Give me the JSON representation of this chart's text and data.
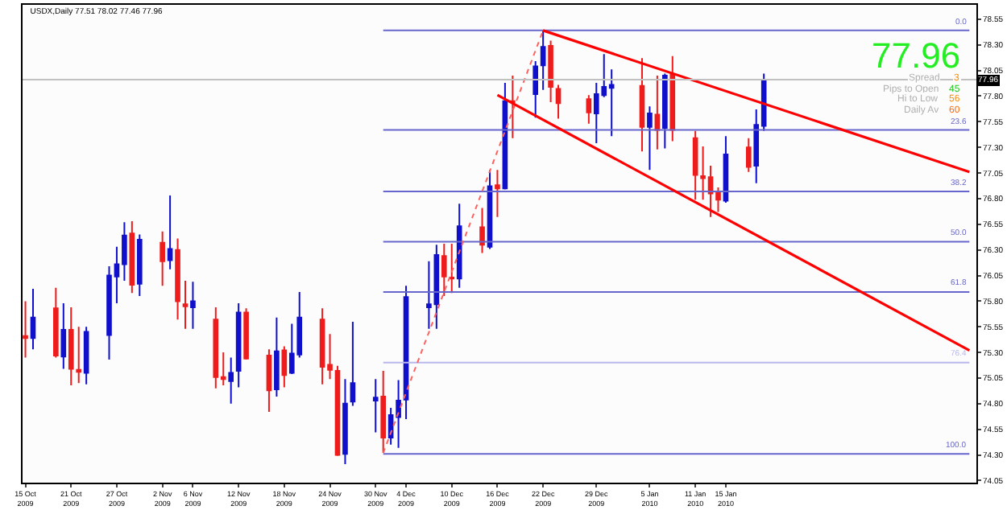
{
  "chart_data": {
    "type": "candlestick",
    "title": "USDX,Daily 77.51 78.02 77.46 77.96",
    "x": [
      "2009-10-15",
      "2009-10-16",
      "2009-10-19",
      "2009-10-20",
      "2009-10-21",
      "2009-10-22",
      "2009-10-23",
      "2009-10-26",
      "2009-10-27",
      "2009-10-28",
      "2009-10-29",
      "2009-10-30",
      "2009-11-02",
      "2009-11-03",
      "2009-11-04",
      "2009-11-05",
      "2009-11-06",
      "2009-11-09",
      "2009-11-10",
      "2009-11-11",
      "2009-11-12",
      "2009-11-13",
      "2009-11-16",
      "2009-11-17",
      "2009-11-18",
      "2009-11-19",
      "2009-11-20",
      "2009-11-23",
      "2009-11-24",
      "2009-11-25",
      "2009-11-26",
      "2009-11-27",
      "2009-11-30",
      "2009-12-01",
      "2009-12-02",
      "2009-12-03",
      "2009-12-04",
      "2009-12-07",
      "2009-12-08",
      "2009-12-09",
      "2009-12-10",
      "2009-12-11",
      "2009-12-14",
      "2009-12-15",
      "2009-12-16",
      "2009-12-17",
      "2009-12-18",
      "2009-12-21",
      "2009-12-22",
      "2009-12-23",
      "2009-12-24",
      "2009-12-28",
      "2009-12-29",
      "2009-12-30",
      "2009-12-31",
      "2010-01-04",
      "2010-01-05",
      "2010-01-06",
      "2010-01-07",
      "2010-01-08",
      "2010-01-11",
      "2010-01-12",
      "2010-01-13",
      "2010-01-14",
      "2010-01-15",
      "2010-01-18",
      "2010-01-19",
      "2010-01-20"
    ],
    "ohlc": [
      [
        75.46,
        75.8,
        75.25,
        75.44
      ],
      [
        75.44,
        75.92,
        75.33,
        75.64
      ],
      [
        75.73,
        75.93,
        75.25,
        75.27
      ],
      [
        75.26,
        75.78,
        75.14,
        75.52
      ],
      [
        75.52,
        75.74,
        74.98,
        75.14
      ],
      [
        75.13,
        75.55,
        75.0,
        75.11
      ],
      [
        75.1,
        75.55,
        74.99,
        75.5
      ],
      [
        75.47,
        76.14,
        75.23,
        76.05
      ],
      [
        76.04,
        76.33,
        75.78,
        76.16
      ],
      [
        76.16,
        76.57,
        76.0,
        76.44
      ],
      [
        76.46,
        76.58,
        75.88,
        75.96
      ],
      [
        75.97,
        76.45,
        75.85,
        76.4
      ],
      [
        76.37,
        76.48,
        75.95,
        76.19
      ],
      [
        76.2,
        76.83,
        76.11,
        76.31
      ],
      [
        76.3,
        76.41,
        75.62,
        75.8
      ],
      [
        75.77,
        76.0,
        75.53,
        75.75
      ],
      [
        75.74,
        75.99,
        75.53,
        75.8
      ],
      [
        75.62,
        75.74,
        74.95,
        75.06
      ],
      [
        75.06,
        75.3,
        74.98,
        75.04
      ],
      [
        75.02,
        75.25,
        74.8,
        75.1
      ],
      [
        75.12,
        75.78,
        74.96,
        75.69
      ],
      [
        75.69,
        75.73,
        75.23,
        75.24
      ],
      [
        75.27,
        75.33,
        74.72,
        74.93
      ],
      [
        74.94,
        75.64,
        74.87,
        75.31
      ],
      [
        75.32,
        75.36,
        74.96,
        75.08
      ],
      [
        75.1,
        75.58,
        75.09,
        75.29
      ],
      [
        75.28,
        75.89,
        75.25,
        75.64
      ],
      [
        75.62,
        75.73,
        74.99,
        75.16
      ],
      [
        75.18,
        75.48,
        75.04,
        75.13
      ],
      [
        75.12,
        75.17,
        74.29,
        74.3
      ],
      [
        74.31,
        75.04,
        74.21,
        74.8
      ],
      [
        74.82,
        75.6,
        74.78,
        75.0
      ],
      [
        74.83,
        75.04,
        74.52,
        74.86
      ],
      [
        74.87,
        75.12,
        74.32,
        74.47
      ],
      [
        74.47,
        74.76,
        74.4,
        74.69
      ],
      [
        74.67,
        75.03,
        74.37,
        74.83
      ],
      [
        74.84,
        75.95,
        74.65,
        75.84
      ],
      [
        75.74,
        76.19,
        75.53,
        75.77
      ],
      [
        75.77,
        76.35,
        75.53,
        76.25
      ],
      [
        76.24,
        76.36,
        75.85,
        76.04
      ],
      [
        76.03,
        76.36,
        75.88,
        76.02
      ],
      [
        76.02,
        76.75,
        75.93,
        76.53
      ],
      [
        76.52,
        76.71,
        76.27,
        76.35
      ],
      [
        76.33,
        77.08,
        76.31,
        76.92
      ],
      [
        76.93,
        77.08,
        76.62,
        76.9
      ],
      [
        76.9,
        77.93,
        76.89,
        77.75
      ],
      [
        77.75,
        78.0,
        77.39,
        77.74
      ],
      [
        77.82,
        78.14,
        77.59,
        78.09
      ],
      [
        78.1,
        78.44,
        77.86,
        78.28
      ],
      [
        78.29,
        78.34,
        77.74,
        77.89
      ],
      [
        77.87,
        77.91,
        77.58,
        77.73
      ],
      [
        77.77,
        77.81,
        77.53,
        77.64
      ],
      [
        77.63,
        77.93,
        77.34,
        77.82
      ],
      [
        77.81,
        78.21,
        77.79,
        77.89
      ],
      [
        77.88,
        78.06,
        77.41,
        77.91
      ],
      [
        77.9,
        78.17,
        77.26,
        77.5
      ],
      [
        77.5,
        77.7,
        77.08,
        77.63
      ],
      [
        77.62,
        78.0,
        77.28,
        77.47
      ],
      [
        77.49,
        78.02,
        77.29,
        78.0
      ],
      [
        78.01,
        78.19,
        77.36,
        77.47
      ],
      [
        77.39,
        77.46,
        76.79,
        77.03
      ],
      [
        77.02,
        77.31,
        76.79,
        77.0
      ],
      [
        77.01,
        77.12,
        76.62,
        76.85
      ],
      [
        76.86,
        76.91,
        76.67,
        76.79
      ],
      [
        76.78,
        77.41,
        76.76,
        77.23
      ],
      [
        77.3,
        77.39,
        77.06,
        77.11
      ],
      [
        77.12,
        77.67,
        76.95,
        77.52
      ],
      [
        77.51,
        78.02,
        77.46,
        77.96
      ]
    ],
    "colors": [
      "#ee1c1c",
      "#1010cc",
      "#ee1c1c",
      "#1010cc",
      "#ee1c1c",
      "#ee1c1c",
      "#1010cc",
      "#1010cc",
      "#1010cc",
      "#1010cc",
      "#ee1c1c",
      "#1010cc",
      "#ee1c1c",
      "#1010cc",
      "#ee1c1c",
      "#ee1c1c",
      "#1010cc",
      "#ee1c1c",
      "#ee1c1c",
      "#1010cc",
      "#1010cc",
      "#ee1c1c",
      "#ee1c1c",
      "#1010cc",
      "#ee1c1c",
      "#1010cc",
      "#1010cc",
      "#ee1c1c",
      "#ee1c1c",
      "#ee1c1c",
      "#1010cc",
      "#1010cc",
      "#1010cc",
      "#ee1c1c",
      "#1010cc",
      "#1010cc",
      "#1010cc",
      "#1010cc",
      "#1010cc",
      "#ee1c1c",
      "#ee1c1c",
      "#1010cc",
      "#ee1c1c",
      "#1010cc",
      "#ee1c1c",
      "#1010cc",
      "#ee1c1c",
      "#1010cc",
      "#1010cc",
      "#ee1c1c",
      "#ee1c1c",
      "#ee1c1c",
      "#1010cc",
      "#1010cc",
      "#1010cc",
      "#ee1c1c",
      "#1010cc",
      "#ee1c1c",
      "#1010cc",
      "#ee1c1c",
      "#ee1c1c",
      "#ee1c1c",
      "#ee1c1c",
      "#ee1c1c",
      "#1010cc",
      "#ee1c1c",
      "#1010cc",
      "#1010cc"
    ],
    "series": [
      {
        "type": "line",
        "name": "0.0",
        "color": "#6666cc",
        "x": [
          "2009-12-01",
          "2010-02-16"
        ],
        "values": [
          78.44,
          78.44
        ]
      },
      {
        "type": "line",
        "name": "23.6",
        "color": "#6666cc",
        "x": [
          "2009-12-01",
          "2010-02-16"
        ],
        "values": [
          77.47,
          77.47
        ]
      },
      {
        "type": "line",
        "name": "38.2",
        "color": "#6666cc",
        "x": [
          "2009-12-01",
          "2010-02-16"
        ],
        "values": [
          76.87,
          76.87
        ]
      },
      {
        "type": "line",
        "name": "50.0",
        "color": "#6666cc",
        "x": [
          "2009-12-01",
          "2010-02-16"
        ],
        "values": [
          76.38,
          76.38
        ]
      },
      {
        "type": "line",
        "name": "61.8",
        "color": "#6666cc",
        "x": [
          "2009-12-01",
          "2010-02-16"
        ],
        "values": [
          75.89,
          75.89
        ]
      },
      {
        "type": "line",
        "name": "76.4",
        "color": "#b8b8ec",
        "x": [
          "2009-12-01",
          "2010-02-16"
        ],
        "values": [
          75.2,
          75.2
        ]
      },
      {
        "type": "line",
        "name": "100.0",
        "color": "#6666cc",
        "x": [
          "2009-12-01",
          "2010-02-16"
        ],
        "values": [
          74.31,
          74.31
        ]
      },
      {
        "type": "line",
        "color": "#ff6060",
        "line_style": "dotted",
        "x": [
          "2009-12-01",
          "2009-12-22"
        ],
        "values": [
          74.32,
          78.44
        ]
      },
      {
        "type": "line",
        "color": "#ff0000",
        "x": [
          "2009-12-22",
          "2010-02-16"
        ],
        "values": [
          78.44,
          77.06
        ]
      },
      {
        "type": "line",
        "color": "#ff0000",
        "x": [
          "2009-12-16",
          "2010-02-16"
        ],
        "values": [
          77.81,
          75.32
        ]
      }
    ],
    "ref_lines": [
      {
        "axis": "y",
        "value": 77.96,
        "label": "77.96",
        "color": "#c0c0c0"
      }
    ],
    "annotations": [
      "77.96",
      "Spread",
      "3",
      "Pips to Open",
      "45",
      "Hi to Low",
      "56",
      "Daily Av",
      "60"
    ],
    "xlim": [
      "2009-10-14T15:00",
      "2010-02-16T22:00"
    ],
    "ylim": [
      74.03,
      78.69
    ],
    "xticks": [
      {
        "value": "2009-10-15",
        "label": "15 Oct 2009"
      },
      {
        "value": "2009-10-21",
        "label": "21 Oct 2009"
      },
      {
        "value": "2009-10-27",
        "label": "27 Oct 2009"
      },
      {
        "value": "2009-11-02",
        "label": "2 Nov 2009"
      },
      {
        "value": "2009-11-06",
        "label": "6 Nov 2009"
      },
      {
        "value": "2009-11-12",
        "label": "12 Nov 2009"
      },
      {
        "value": "2009-11-18",
        "label": "18 Nov 2009"
      },
      {
        "value": "2009-11-24",
        "label": "24 Nov 2009"
      },
      {
        "value": "2009-11-30",
        "label": "30 Nov 2009"
      },
      {
        "value": "2009-12-04",
        "label": "4 Dec 2009"
      },
      {
        "value": "2009-12-10",
        "label": "10 Dec 2009"
      },
      {
        "value": "2009-12-16",
        "label": "16 Dec 2009"
      },
      {
        "value": "2009-12-22",
        "label": "22 Dec 2009"
      },
      {
        "value": "2009-12-29",
        "label": "29 Dec 2009"
      },
      {
        "value": "2010-01-05",
        "label": "5 Jan 2010"
      },
      {
        "value": "2010-01-11",
        "label": "11 Jan 2010"
      },
      {
        "value": "2010-01-15",
        "label": "15 Jan 2010"
      }
    ],
    "yticks": [
      78.55,
      {
        "value": 78.3,
        "label": "78.30"
      },
      78.05,
      {
        "value": 77.8,
        "label": "77.80"
      },
      77.55,
      {
        "value": 77.3,
        "label": "77.30"
      },
      77.05,
      {
        "value": 76.8,
        "label": "76.80"
      },
      76.55,
      {
        "value": 76.3,
        "label": "76.30"
      },
      76.05,
      {
        "value": 75.8,
        "label": "75.80"
      },
      75.55,
      {
        "value": 75.3,
        "label": "75.30"
      },
      75.05,
      {
        "value": 74.8,
        "label": "74.80"
      },
      74.55,
      {
        "value": 74.3,
        "label": "74.30"
      },
      74.05
    ]
  }
}
